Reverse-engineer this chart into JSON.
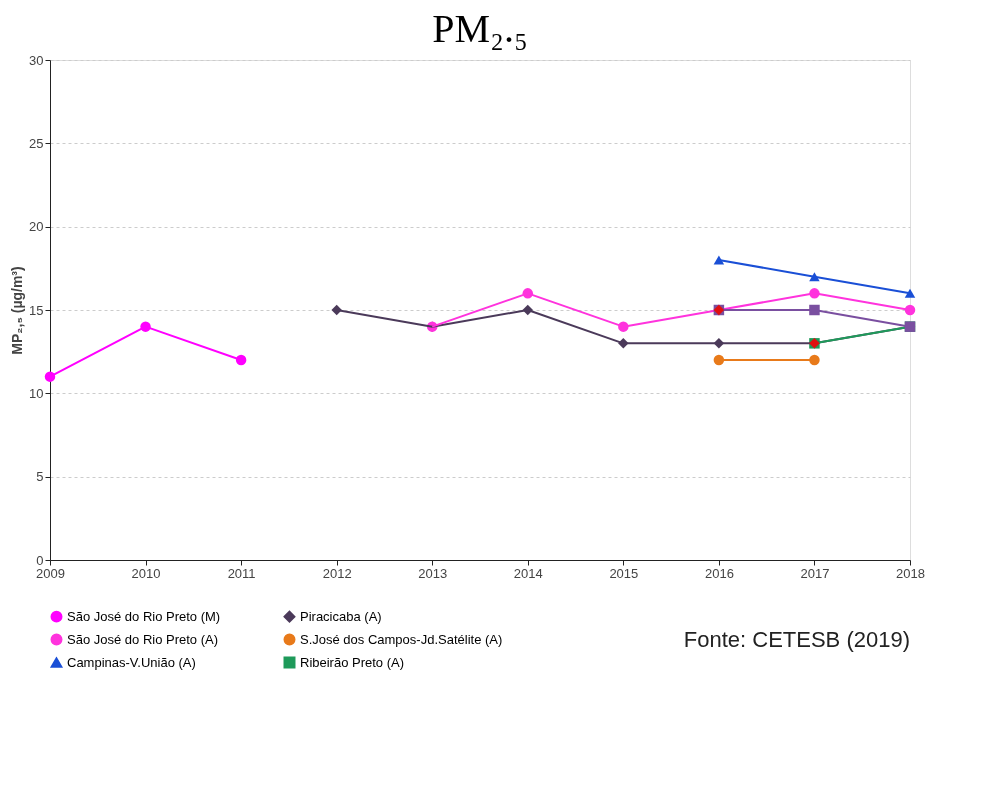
{
  "chart_data": {
    "type": "line",
    "title": "PM₂.₅",
    "ylabel": "MP₂,₅ (µg/m³)",
    "categories": [
      "2009",
      "2010",
      "2011",
      "2012",
      "2013",
      "2014",
      "2015",
      "2016",
      "2017",
      "2018"
    ],
    "ylim": [
      0,
      30
    ],
    "yticks": [
      0,
      5,
      10,
      15,
      20,
      25,
      30
    ],
    "grid": "y",
    "legend": "bottom left",
    "annotations": [
      "Fonte: CETESB (2019)"
    ],
    "series": [
      {
        "name": "São José do Rio Preto (M)",
        "color": "#ff00ff",
        "marker": "circle",
        "values": [
          11,
          14,
          12,
          null,
          null,
          null,
          null,
          null,
          null,
          null
        ]
      },
      {
        "name": "Piracicaba (A)",
        "color": "#4b3a5a",
        "marker": "diamond",
        "values": [
          null,
          null,
          null,
          15,
          14,
          15,
          13,
          13,
          13,
          14
        ]
      },
      {
        "name": "São José do Rio Preto (A)",
        "color": "#ff33dd",
        "marker": "circle",
        "values": [
          null,
          null,
          null,
          null,
          14,
          16,
          14,
          15,
          16,
          15
        ]
      },
      {
        "name": "S.José dos Campos-Jd.Satélite (A)",
        "color": "#e87a1a",
        "marker": "circle",
        "values": [
          null,
          null,
          null,
          null,
          null,
          null,
          null,
          12,
          12,
          null
        ]
      },
      {
        "name": "Campinas-V.União (A)",
        "color": "#1a4fd6",
        "marker": "triangle",
        "values": [
          null,
          null,
          null,
          null,
          null,
          null,
          null,
          18,
          17,
          16
        ]
      },
      {
        "name": "Ribeirão Preto (A)",
        "color": "#1e9a5a",
        "marker": "square",
        "values": [
          null,
          null,
          null,
          null,
          null,
          null,
          null,
          null,
          13,
          14
        ]
      },
      {
        "color": "#7a4fa0",
        "marker": "square",
        "values": [
          null,
          null,
          null,
          null,
          null,
          null,
          null,
          15,
          15,
          14
        ]
      },
      {
        "type": "scatter",
        "color": "#e01010",
        "marker": "diamond",
        "values": [
          null,
          null,
          null,
          null,
          null,
          null,
          null,
          15,
          13,
          null
        ]
      }
    ]
  }
}
